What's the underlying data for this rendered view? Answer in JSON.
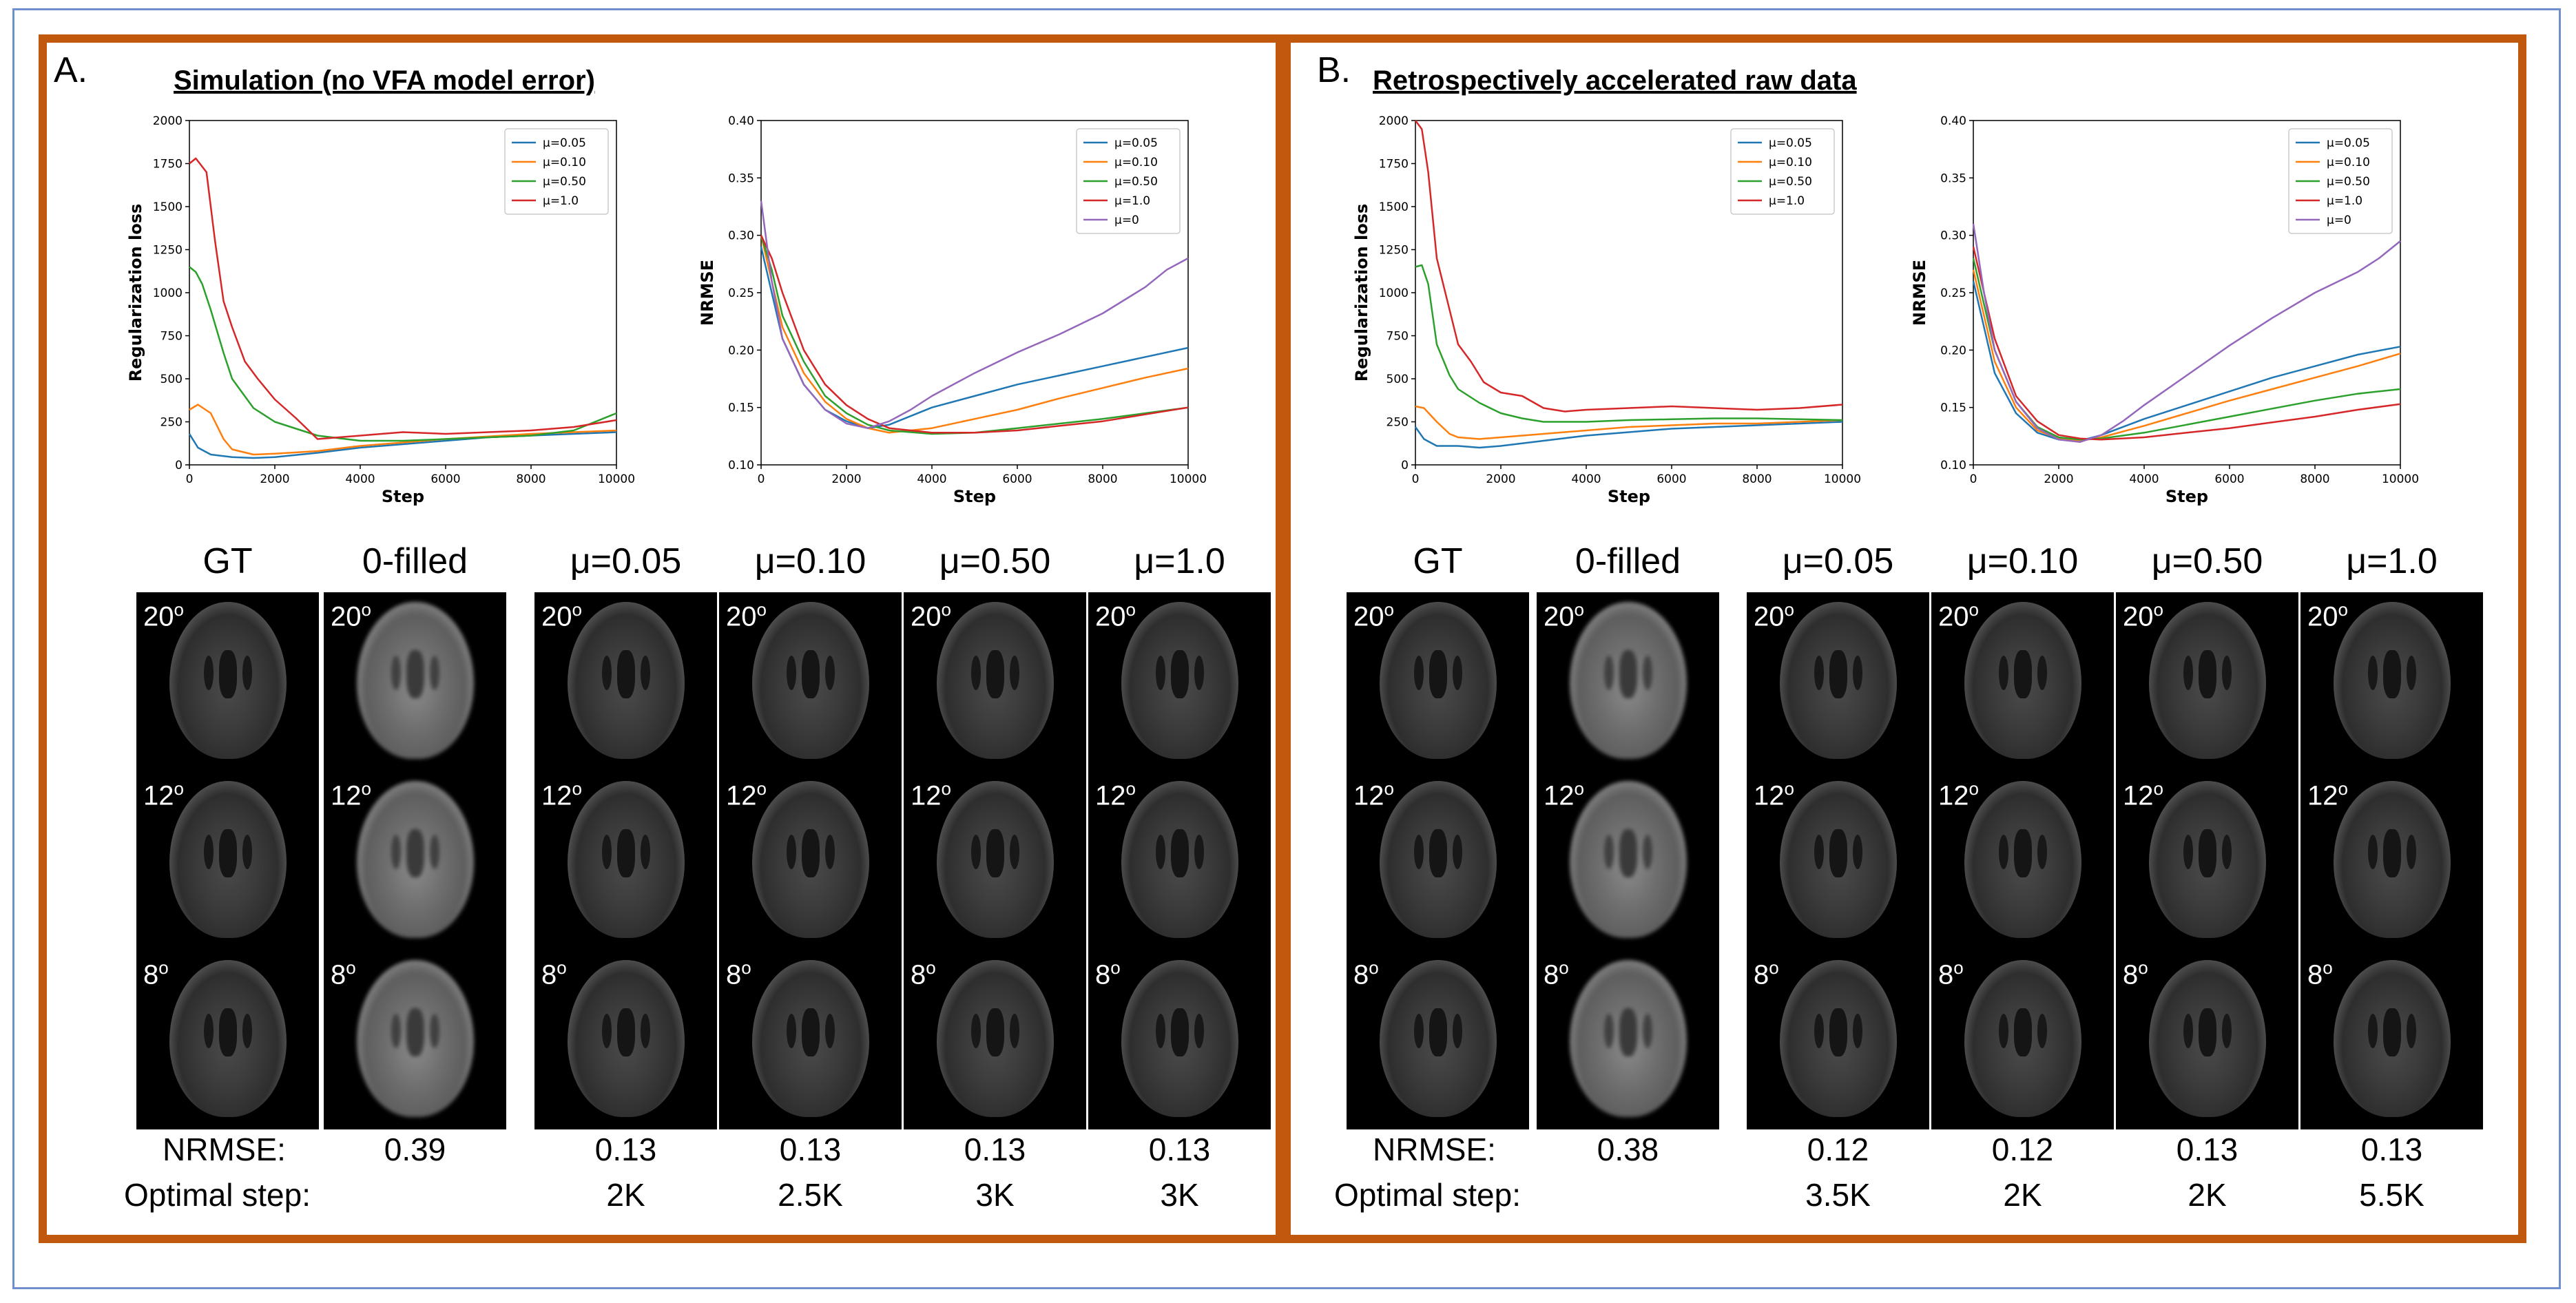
{
  "panels": [
    {
      "letter": "A.",
      "title": "Simulation (no VFA model error)",
      "charts": [
        {
          "ylabel": "Regularization loss",
          "xlabel": "Step"
        },
        {
          "ylabel": "NRMSE",
          "xlabel": "Step"
        }
      ],
      "columns": [
        "GT",
        "0-filled",
        "μ=0.05",
        "μ=0.10",
        "μ=0.50",
        "μ=1.0"
      ],
      "angles": [
        "20o",
        "12o",
        "8o"
      ],
      "nrmse_label": "NRMSE:",
      "step_label": "Optimal step:",
      "nrmse": [
        "0.39",
        "0.13",
        "0.13",
        "0.13",
        "0.13"
      ],
      "steps": [
        "2K",
        "2.5K",
        "3K",
        "3K"
      ]
    },
    {
      "letter": "B.",
      "title": "Retrospectively accelerated raw data",
      "charts": [
        {
          "ylabel": "Regularization loss",
          "xlabel": "Step"
        },
        {
          "ylabel": "NRMSE",
          "xlabel": "Step"
        }
      ],
      "columns": [
        "GT",
        "0-filled",
        "μ=0.05",
        "μ=0.10",
        "μ=0.50",
        "μ=1.0"
      ],
      "angles": [
        "20o",
        "12o",
        "8o"
      ],
      "nrmse_label": "NRMSE:",
      "step_label": "Optimal step:",
      "nrmse": [
        "0.38",
        "0.12",
        "0.12",
        "0.13",
        "0.13"
      ],
      "steps": [
        "3.5K",
        "2K",
        "2K",
        "5.5K"
      ]
    }
  ],
  "colors": {
    "mu005": "#1f77b4",
    "mu010": "#ff7f0e",
    "mu050": "#2ca02c",
    "mu10": "#d62728",
    "mu0": "#9467bd",
    "border": "#c0580e"
  },
  "chart_data": [
    {
      "type": "line",
      "title": "",
      "xlabel": "Step",
      "ylabel": "Regularization loss",
      "xlim": [
        0,
        10000
      ],
      "ylim": [
        0,
        2000
      ],
      "xticks": [
        0,
        2000,
        4000,
        6000,
        8000,
        10000
      ],
      "yticks": [
        0,
        250,
        500,
        750,
        1000,
        1250,
        1500,
        1750,
        2000
      ],
      "legend": "top-right",
      "series": [
        {
          "name": "μ=0.05",
          "color": "#1f77b4",
          "x": [
            0,
            200,
            500,
            1000,
            1500,
            2000,
            3000,
            4000,
            5000,
            6000,
            7000,
            8000,
            9000,
            10000
          ],
          "y": [
            180,
            100,
            60,
            45,
            40,
            45,
            70,
            100,
            120,
            140,
            160,
            170,
            180,
            190
          ]
        },
        {
          "name": "μ=0.10",
          "color": "#ff7f0e",
          "x": [
            0,
            200,
            500,
            800,
            1000,
            1500,
            2000,
            3000,
            4000,
            5000,
            6000,
            7000,
            8000,
            9000,
            10000
          ],
          "y": [
            320,
            350,
            300,
            150,
            90,
            60,
            65,
            80,
            110,
            130,
            150,
            165,
            180,
            190,
            200
          ]
        },
        {
          "name": "μ=0.50",
          "color": "#2ca02c",
          "x": [
            0,
            150,
            300,
            500,
            800,
            1000,
            1500,
            2000,
            2500,
            3000,
            4000,
            5000,
            6000,
            7000,
            8000,
            9000,
            10000
          ],
          "y": [
            1150,
            1120,
            1050,
            900,
            650,
            500,
            330,
            250,
            210,
            170,
            140,
            140,
            150,
            160,
            170,
            200,
            300
          ]
        },
        {
          "name": "μ=1.0",
          "color": "#d62728",
          "x": [
            0,
            150,
            400,
            600,
            800,
            1000,
            1300,
            1600,
            2000,
            2500,
            3000,
            3500,
            4000,
            5000,
            6000,
            7000,
            8000,
            9000,
            10000
          ],
          "y": [
            1750,
            1780,
            1700,
            1300,
            950,
            800,
            600,
            500,
            380,
            270,
            150,
            160,
            170,
            190,
            180,
            190,
            200,
            220,
            260
          ]
        }
      ]
    },
    {
      "type": "line",
      "title": "",
      "xlabel": "Step",
      "ylabel": "NRMSE",
      "xlim": [
        0,
        10000
      ],
      "ylim": [
        0.1,
        0.4
      ],
      "xticks": [
        0,
        2000,
        4000,
        6000,
        8000,
        10000
      ],
      "yticks": [
        0.1,
        0.15,
        0.2,
        0.25,
        0.3,
        0.35,
        0.4
      ],
      "legend": "top-right",
      "series": [
        {
          "name": "μ=0.05",
          "color": "#1f77b4",
          "x": [
            0,
            250,
            500,
            1000,
            1500,
            2000,
            2500,
            3000,
            4000,
            5000,
            6000,
            7000,
            8000,
            9000,
            10000
          ],
          "y": [
            0.29,
            0.25,
            0.21,
            0.17,
            0.148,
            0.138,
            0.132,
            0.135,
            0.15,
            0.16,
            0.17,
            0.178,
            0.186,
            0.194,
            0.202
          ]
        },
        {
          "name": "μ=0.10",
          "color": "#ff7f0e",
          "x": [
            0,
            250,
            500,
            1000,
            1500,
            2000,
            2500,
            3000,
            4000,
            5000,
            6000,
            7000,
            8000,
            9000,
            10000
          ],
          "y": [
            0.3,
            0.26,
            0.22,
            0.18,
            0.155,
            0.14,
            0.132,
            0.128,
            0.132,
            0.14,
            0.148,
            0.158,
            0.167,
            0.176,
            0.184
          ]
        },
        {
          "name": "μ=0.50",
          "color": "#2ca02c",
          "x": [
            0,
            250,
            500,
            1000,
            1500,
            2000,
            2500,
            3000,
            4000,
            5000,
            6000,
            7000,
            8000,
            9000,
            10000
          ],
          "y": [
            0.3,
            0.27,
            0.23,
            0.19,
            0.16,
            0.145,
            0.135,
            0.13,
            0.127,
            0.128,
            0.132,
            0.136,
            0.14,
            0.145,
            0.15
          ]
        },
        {
          "name": "μ=1.0",
          "color": "#d62728",
          "x": [
            0,
            250,
            500,
            1000,
            1500,
            2000,
            2500,
            3000,
            4000,
            5000,
            6000,
            7000,
            8000,
            9000,
            10000
          ],
          "y": [
            0.3,
            0.28,
            0.25,
            0.2,
            0.17,
            0.152,
            0.14,
            0.132,
            0.128,
            0.128,
            0.13,
            0.134,
            0.138,
            0.144,
            0.15
          ]
        },
        {
          "name": "μ=0",
          "color": "#9467bd",
          "x": [
            0,
            250,
            500,
            1000,
            1500,
            2000,
            2500,
            3000,
            3500,
            4000,
            5000,
            6000,
            7000,
            8000,
            9000,
            9500,
            10000
          ],
          "y": [
            0.33,
            0.26,
            0.21,
            0.17,
            0.148,
            0.136,
            0.132,
            0.138,
            0.148,
            0.16,
            0.18,
            0.198,
            0.214,
            0.232,
            0.255,
            0.27,
            0.28
          ]
        }
      ]
    },
    {
      "type": "line",
      "title": "",
      "xlabel": "Step",
      "ylabel": "Regularization loss",
      "xlim": [
        0,
        10000
      ],
      "ylim": [
        0,
        2000
      ],
      "xticks": [
        0,
        2000,
        4000,
        6000,
        8000,
        10000
      ],
      "yticks": [
        0,
        250,
        500,
        750,
        1000,
        1250,
        1500,
        1750,
        2000
      ],
      "legend": "top-right",
      "series": [
        {
          "name": "μ=0.05",
          "color": "#1f77b4",
          "x": [
            0,
            200,
            500,
            1000,
            1500,
            2000,
            3000,
            4000,
            5000,
            6000,
            7000,
            8000,
            9000,
            10000
          ],
          "y": [
            220,
            150,
            110,
            110,
            100,
            110,
            140,
            170,
            190,
            210,
            220,
            230,
            240,
            250
          ]
        },
        {
          "name": "μ=0.10",
          "color": "#ff7f0e",
          "x": [
            0,
            200,
            500,
            800,
            1000,
            1500,
            2000,
            3000,
            4000,
            5000,
            6000,
            7000,
            8000,
            9000,
            10000
          ],
          "y": [
            340,
            330,
            250,
            180,
            160,
            150,
            160,
            180,
            200,
            220,
            230,
            240,
            240,
            250,
            260
          ]
        },
        {
          "name": "μ=0.50",
          "color": "#2ca02c",
          "x": [
            0,
            150,
            300,
            500,
            800,
            1000,
            1500,
            2000,
            2500,
            3000,
            4000,
            5000,
            6000,
            7000,
            8000,
            9000,
            10000
          ],
          "y": [
            1150,
            1160,
            1050,
            700,
            520,
            440,
            360,
            300,
            270,
            250,
            250,
            260,
            265,
            270,
            270,
            265,
            260
          ]
        },
        {
          "name": "μ=1.0",
          "color": "#d62728",
          "x": [
            0,
            150,
            300,
            500,
            800,
            1000,
            1300,
            1600,
            2000,
            2500,
            3000,
            3500,
            4000,
            5000,
            6000,
            7000,
            8000,
            9000,
            10000
          ],
          "y": [
            2000,
            1950,
            1700,
            1200,
            900,
            700,
            600,
            480,
            420,
            400,
            330,
            310,
            320,
            330,
            340,
            330,
            320,
            330,
            350
          ]
        }
      ]
    },
    {
      "type": "line",
      "title": "",
      "xlabel": "Step",
      "ylabel": "NRMSE",
      "xlim": [
        0,
        10000
      ],
      "ylim": [
        0.1,
        0.4
      ],
      "xticks": [
        0,
        2000,
        4000,
        6000,
        8000,
        10000
      ],
      "yticks": [
        0.1,
        0.15,
        0.2,
        0.25,
        0.3,
        0.35,
        0.4
      ],
      "legend": "top-right",
      "series": [
        {
          "name": "μ=0.05",
          "color": "#1f77b4",
          "x": [
            0,
            250,
            500,
            1000,
            1500,
            2000,
            2500,
            3000,
            4000,
            5000,
            6000,
            7000,
            8000,
            9000,
            10000
          ],
          "y": [
            0.26,
            0.22,
            0.18,
            0.145,
            0.128,
            0.122,
            0.121,
            0.126,
            0.14,
            0.152,
            0.164,
            0.176,
            0.186,
            0.196,
            0.203
          ]
        },
        {
          "name": "μ=0.10",
          "color": "#ff7f0e",
          "x": [
            0,
            250,
            500,
            1000,
            1500,
            2000,
            2500,
            3000,
            4000,
            5000,
            6000,
            7000,
            8000,
            9000,
            10000
          ],
          "y": [
            0.27,
            0.23,
            0.19,
            0.15,
            0.13,
            0.123,
            0.121,
            0.124,
            0.134,
            0.145,
            0.156,
            0.166,
            0.176,
            0.186,
            0.197
          ]
        },
        {
          "name": "μ=0.50",
          "color": "#2ca02c",
          "x": [
            0,
            250,
            500,
            1000,
            1500,
            2000,
            2500,
            3000,
            4000,
            5000,
            6000,
            7000,
            8000,
            9000,
            10000
          ],
          "y": [
            0.28,
            0.24,
            0.2,
            0.155,
            0.133,
            0.124,
            0.122,
            0.123,
            0.128,
            0.135,
            0.142,
            0.149,
            0.156,
            0.162,
            0.166
          ]
        },
        {
          "name": "μ=1.0",
          "color": "#d62728",
          "x": [
            0,
            250,
            500,
            1000,
            1500,
            2000,
            2500,
            3000,
            4000,
            5000,
            6000,
            7000,
            8000,
            9000,
            10000
          ],
          "y": [
            0.29,
            0.25,
            0.21,
            0.16,
            0.138,
            0.126,
            0.123,
            0.122,
            0.124,
            0.128,
            0.132,
            0.137,
            0.142,
            0.148,
            0.153
          ]
        },
        {
          "name": "μ=0",
          "color": "#9467bd",
          "x": [
            0,
            250,
            500,
            1000,
            1500,
            2000,
            2500,
            3000,
            3500,
            4000,
            5000,
            6000,
            7000,
            8000,
            9000,
            9500,
            10000
          ],
          "y": [
            0.31,
            0.25,
            0.2,
            0.155,
            0.132,
            0.122,
            0.12,
            0.126,
            0.138,
            0.152,
            0.178,
            0.204,
            0.228,
            0.25,
            0.268,
            0.28,
            0.295
          ]
        }
      ]
    }
  ]
}
